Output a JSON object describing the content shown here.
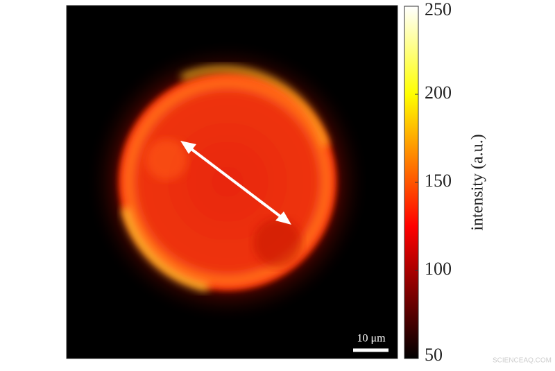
{
  "chart_data": {
    "type": "image",
    "colorbar": {
      "label": "intensity (a.u.)",
      "clim": [
        50,
        250
      ],
      "ticks": [
        50,
        100,
        150,
        200,
        250
      ],
      "colormap": "hot"
    },
    "scale_bar": "10 μm",
    "watermark": "SCIENCEAQ.COM"
  }
}
